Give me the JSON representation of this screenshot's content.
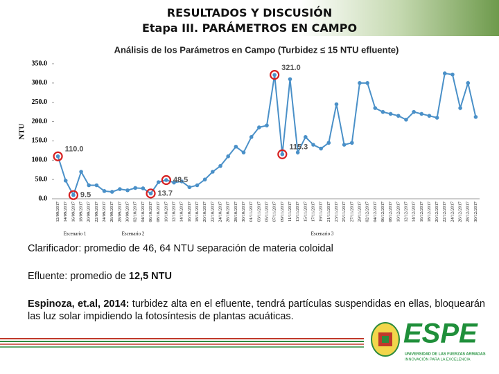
{
  "header": {
    "title": "RESULTADOS Y DISCUSIÓN",
    "subtitle": "Etapa III. PARÁMETROS EN CAMPO"
  },
  "chart_data": {
    "type": "line",
    "title": "Análisis de los Parámetros en Campo (Turbidez ≤ 15 NTU efluente)",
    "ylabel": "NTU",
    "categories": [
      "12/09/2017",
      "14/09/2017",
      "16/09/2017",
      "18/09/2017",
      "20/09/2017",
      "22/09/2017",
      "24/09/2017",
      "26/09/2017",
      "28/09/2017",
      "30/09/2017",
      "02/10/2017",
      "04/10/2017",
      "06/10/2017",
      "08/10/2017",
      "10/10/2017",
      "12/10/2017",
      "14/10/2017",
      "16/10/2017",
      "18/10/2017",
      "20/10/2017",
      "22/10/2017",
      "24/10/2017",
      "26/10/2017",
      "28/10/2017",
      "30/10/2017",
      "01/11/2017",
      "03/11/2017",
      "05/11/2017",
      "07/11/2017",
      "09/11/2017",
      "11/11/2017",
      "13/11/2017",
      "15/11/2017",
      "17/11/2017",
      "19/11/2017",
      "21/11/2017",
      "23/11/2017",
      "25/11/2017",
      "27/11/2017",
      "29/11/2017",
      "02/12/2017",
      "04/12/2017",
      "06/12/2017",
      "08/12/2017",
      "10/12/2017",
      "12/12/2017",
      "14/12/2017",
      "16/12/2017",
      "18/12/2017",
      "20/12/2017",
      "22/12/2017",
      "24/12/2017",
      "26/12/2017",
      "28/12/2017",
      "30/12/2017"
    ],
    "series": [
      {
        "name": "Turbidez",
        "color": "#4a90c8",
        "values": [
          110,
          47,
          9.5,
          70,
          35,
          35,
          20,
          18,
          25,
          22,
          28,
          27,
          13.7,
          43,
          48.5,
          42,
          45,
          30,
          35,
          50,
          70,
          85,
          110,
          135,
          120,
          160,
          185,
          190,
          321,
          115.3,
          310,
          120,
          160,
          140,
          130,
          145,
          245,
          140,
          145,
          300,
          300,
          235,
          225,
          220,
          215,
          205,
          225,
          220,
          215,
          210,
          325,
          322,
          235,
          300,
          212
        ],
        "value_labels": [
          "110.0",
          null,
          "9.5",
          null,
          null,
          null,
          null,
          null,
          null,
          null,
          null,
          null,
          "13.7",
          null,
          "48.5",
          null,
          null,
          null,
          null,
          null,
          null,
          null,
          null,
          null,
          null,
          null,
          null,
          null,
          "321.0",
          "115.3",
          null,
          null,
          null,
          null,
          null,
          null,
          null,
          null,
          null,
          null,
          null,
          null,
          null,
          null,
          null,
          null,
          null,
          null,
          null,
          null,
          null,
          null,
          null,
          null,
          null
        ]
      }
    ],
    "ylim": [
      0,
      350
    ],
    "yticks": [
      {
        "value": 0,
        "label": "0.0"
      },
      {
        "value": 50,
        "label": "50.0"
      },
      {
        "value": 100,
        "label": "100.0"
      },
      {
        "value": 150,
        "label": "150.0"
      },
      {
        "value": 200,
        "label": "200.0"
      },
      {
        "value": 250,
        "label": "250.0"
      },
      {
        "value": 300,
        "label": "300.0"
      },
      {
        "value": 350,
        "label": "350.0"
      }
    ],
    "scenarios": [
      "Escenario 1",
      "Escenario 2",
      "Escenario 3"
    ]
  },
  "text": {
    "p1": "Clarificador: promedio de 46, 64 NTU separación de materia coloidal",
    "p2a": "Efluente: promedio de ",
    "p2b": "12,5 NTU",
    "p3a": "Espinoza, et.al, 2014:",
    "p3b": " turbidez alta en el efluente, tendrá partículas suspendidas en ellas, bloquearán las luz solar impidiendo la fotosíntesis de plantas acuáticas."
  },
  "logo": {
    "name": "ESPE",
    "line1": "UNIVERSIDAD DE LAS FUERZAS ARMADAS",
    "line2": "INNOVACIÓN PARA LA EXCELENCIA"
  }
}
